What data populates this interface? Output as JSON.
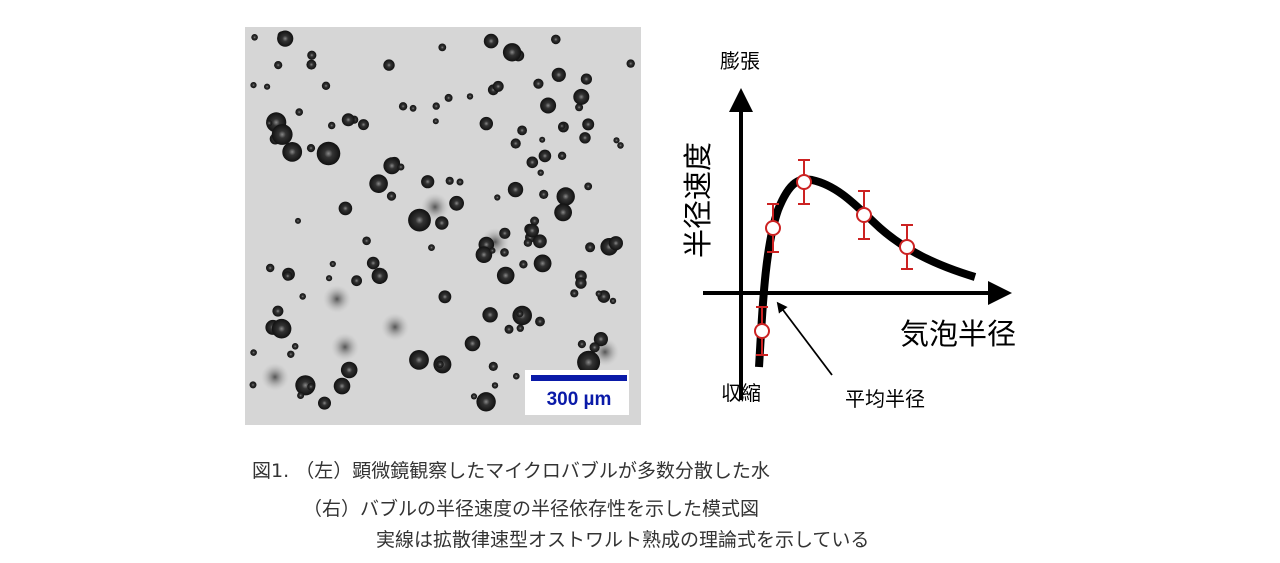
{
  "micrograph": {
    "scale_bar_label": "300 µm",
    "scale_bar_color": "#0a1aa8"
  },
  "chart_data": {
    "type": "line",
    "title": "",
    "ylabel": "半径速度",
    "xlabel": "気泡半径",
    "y_top_label": "膨張",
    "y_bottom_label": "収縮",
    "annotation": "平均半径",
    "series": [
      {
        "style": "solid black theoretical curve"
      },
      {
        "style": "red open circles with error bars",
        "color": "#cc2222"
      }
    ]
  },
  "caption": {
    "line1_prefix": "図1.",
    "line1_tag": "（左）",
    "line1_text": "顕微鏡観察したマイクロバブルが多数分散した水",
    "line2_tag": "（右）",
    "line2_text": "バブルの半径速度の半径依存性を示した模式図",
    "line3_text": "実線は拡散律速型オストワルト熟成の理論式を示している"
  }
}
